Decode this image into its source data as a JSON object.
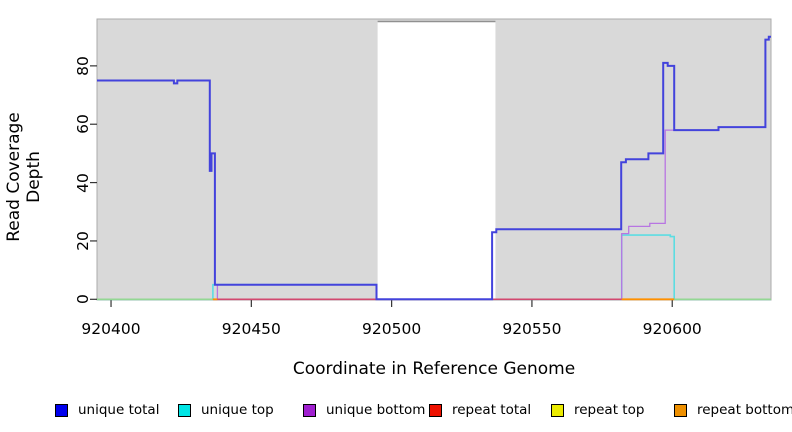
{
  "axes": {
    "x_title": "Coordinate in Reference Genome",
    "y_title": "Read Coverage Depth",
    "x_tick_labels": [
      "920400",
      "920450",
      "920500",
      "920550",
      "920600"
    ],
    "x_tick_values": [
      920400,
      920450,
      920500,
      920550,
      920600
    ],
    "y_tick_labels": [
      "0",
      "20",
      "40",
      "60",
      "80"
    ],
    "y_tick_values": [
      0,
      20,
      40,
      60,
      80
    ]
  },
  "legend": {
    "items": [
      {
        "label": "unique total",
        "color": "#0000ee"
      },
      {
        "label": "unique top",
        "color": "#00e5e5"
      },
      {
        "label": "unique bottom",
        "color": "#a020d0"
      },
      {
        "label": "repeat total",
        "color": "#ee1100"
      },
      {
        "label": "repeat top",
        "color": "#ebeb00"
      },
      {
        "label": "repeat bottom",
        "color": "#ee9000"
      }
    ]
  },
  "chart_data": {
    "type": "line",
    "title": "",
    "xlabel": "Coordinate in Reference Genome",
    "ylabel": "Read Coverage Depth",
    "xlim": [
      920395,
      920635.2
    ],
    "ylim": [
      0,
      96.3
    ],
    "grid": false,
    "plot_bg": "#d9d9d9",
    "plot_border_color": "#ababab",
    "no_data_band": {
      "from": 920495,
      "to": 920537,
      "color": "#ffffff",
      "top_edge_color": "#909090"
    },
    "legend_position": "bottom",
    "series": [
      {
        "name": "unique top",
        "color": "#5cdde2",
        "width": 1.6,
        "points": [
          [
            920395,
            0
          ],
          [
            920436.3,
            0
          ],
          [
            920436.3,
            5
          ],
          [
            920494.6,
            5
          ],
          [
            920494.6,
            0
          ],
          [
            920582,
            0
          ],
          [
            920582,
            22
          ],
          [
            920599.3,
            22
          ],
          [
            920599.3,
            21.5
          ],
          [
            920600.7,
            21.5
          ],
          [
            920600.7,
            0
          ],
          [
            920635.2,
            0
          ]
        ]
      },
      {
        "name": "unique bottom",
        "color": "#b875e2",
        "width": 1.3,
        "points": [
          [
            920395,
            75
          ],
          [
            920422.4,
            75
          ],
          [
            920422.4,
            74
          ],
          [
            920423.6,
            74
          ],
          [
            920423.6,
            75
          ],
          [
            920435.2,
            75
          ],
          [
            920435.2,
            44
          ],
          [
            920435.8,
            44
          ],
          [
            920435.8,
            50
          ],
          [
            920437,
            50
          ],
          [
            920437,
            5
          ],
          [
            920437.9,
            5
          ],
          [
            920437.9,
            0
          ],
          [
            920582,
            0
          ],
          [
            920582,
            22.5
          ],
          [
            920584.5,
            22.5
          ],
          [
            920584.5,
            25
          ],
          [
            920592,
            25
          ],
          [
            920592,
            26
          ],
          [
            920597.5,
            26
          ],
          [
            920597.5,
            58
          ],
          [
            920616.5,
            58
          ],
          [
            920616.5,
            59
          ],
          [
            920633.2,
            59
          ],
          [
            920633.2,
            89
          ],
          [
            920634.4,
            89
          ],
          [
            920634.4,
            90
          ],
          [
            920635.2,
            90
          ]
        ]
      },
      {
        "name": "baseline overlap left",
        "color": "#93d793",
        "width": 1.6,
        "points": [
          [
            920395,
            0
          ],
          [
            920436.3,
            0
          ]
        ]
      },
      {
        "name": "baseline overlap right",
        "color": "#93d793",
        "width": 1.6,
        "points": [
          [
            920600.7,
            0
          ],
          [
            920635.2,
            0
          ]
        ]
      },
      {
        "name": "repeat total",
        "color": "#d2486f",
        "width": 1.6,
        "points": [
          [
            920436.3,
            0
          ],
          [
            920582,
            0
          ]
        ]
      },
      {
        "name": "repeat bottom",
        "color": "#ff9000",
        "width": 1.8,
        "points": [
          [
            920582,
            0
          ],
          [
            920600.7,
            0
          ]
        ]
      },
      {
        "name": "repeat bottom notch",
        "color": "#ff9000",
        "width": 1.8,
        "points": [
          [
            920436.3,
            0
          ],
          [
            920437.9,
            0
          ]
        ]
      },
      {
        "name": "unique total",
        "color": "#4343dc",
        "width": 2,
        "points": [
          [
            920395,
            75
          ],
          [
            920422.4,
            75
          ],
          [
            920422.4,
            74
          ],
          [
            920423.6,
            74
          ],
          [
            920423.6,
            75
          ],
          [
            920435.2,
            75
          ],
          [
            920435.2,
            44
          ],
          [
            920435.8,
            44
          ],
          [
            920435.8,
            50
          ],
          [
            920437,
            50
          ],
          [
            920437,
            5
          ],
          [
            920494.6,
            5
          ],
          [
            920494.6,
            0
          ],
          [
            920535.8,
            0
          ],
          [
            920535.8,
            23
          ],
          [
            920537.3,
            23
          ],
          [
            920537.3,
            24
          ],
          [
            920581.8,
            24
          ],
          [
            920581.8,
            47
          ],
          [
            920583.5,
            47
          ],
          [
            920583.5,
            48
          ],
          [
            920591.5,
            48
          ],
          [
            920591.5,
            50
          ],
          [
            920596.8,
            50
          ],
          [
            920596.8,
            81
          ],
          [
            920598.4,
            81
          ],
          [
            920598.4,
            80
          ],
          [
            920600.7,
            80
          ],
          [
            920600.7,
            58
          ],
          [
            920616.5,
            58
          ],
          [
            920616.5,
            59
          ],
          [
            920633.2,
            59
          ],
          [
            920633.2,
            89
          ],
          [
            920634.4,
            89
          ],
          [
            920634.4,
            90
          ],
          [
            920635.2,
            90
          ]
        ]
      }
    ]
  }
}
